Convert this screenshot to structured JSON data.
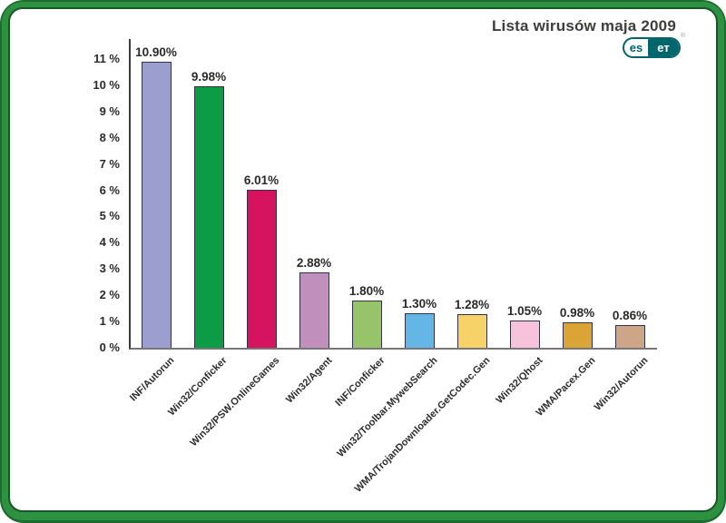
{
  "title": "Lista wirusów maja 2009",
  "logo": {
    "brand": "eset",
    "left": "es",
    "right": "eт",
    "reg": "®",
    "color": "#00666b"
  },
  "colors": {
    "frame_green_mid": "#2e9041",
    "frame_green_dark": "#155826",
    "title_text": "#3e3d3c",
    "y_axis_line": "#3a3a3a",
    "x_axis_line": "#77777a",
    "label_text": "#2b2a29",
    "bar_border": "#31314a"
  },
  "chart_data": {
    "type": "bar",
    "title": "Lista wirusów maja 2009",
    "categories": [
      "INF/Autorun",
      "Win32/Conficker",
      "Win32/PSW.OnlineGames",
      "Win32/Agent",
      "INF/Conficker",
      "Win32/Toolbar.MywebSearch",
      "WMA/TrojanDownloader.GetCodec.Gen",
      "Win32/Qhost",
      "WMA/Pacex.Gen",
      "Win32/Autorun"
    ],
    "values": [
      10.9,
      9.98,
      6.01,
      2.88,
      1.8,
      1.3,
      1.28,
      1.05,
      0.98,
      0.86
    ],
    "value_labels": [
      "10.90%",
      "9.98%",
      "6.01%",
      "2.88%",
      "1.80%",
      "1.30%",
      "1.28%",
      "1.05%",
      "0.98%",
      "0.86%"
    ],
    "bar_colors": [
      "#9c9ecf",
      "#0d9c46",
      "#d5135f",
      "#c08fbc",
      "#97c46b",
      "#64b6e6",
      "#f7d269",
      "#f6c3da",
      "#daa437",
      "#cda687"
    ],
    "xlabel": "",
    "ylabel": "",
    "ylim": [
      0,
      11
    ],
    "ytick_labels": [
      "0 %",
      "1 %",
      "2 %",
      "3 %",
      "4 %",
      "5 %",
      "6 %",
      "7 %",
      "8 %",
      "9 %",
      "10 %",
      "11 %"
    ],
    "grid": false,
    "legend": "none",
    "x_label_rotation_deg": -45
  }
}
